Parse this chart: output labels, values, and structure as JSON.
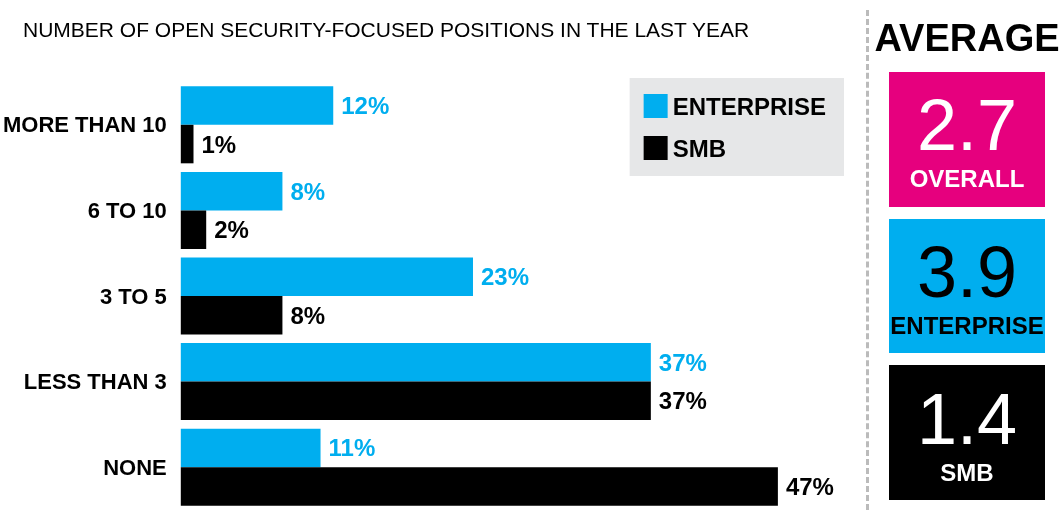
{
  "chart_data": [
    {
      "type": "bar",
      "orientation": "horizontal",
      "title": "NUMBER OF OPEN SECURITY-FOCUSED POSITIONS IN THE LAST YEAR",
      "categories": [
        "MORE THAN 10",
        "6 TO 10",
        "3 TO 5",
        "LESS THAN 3",
        "NONE"
      ],
      "series": [
        {
          "name": "ENTERPRISE",
          "color": "#00aeef",
          "values": [
            12,
            8,
            23,
            37,
            11
          ],
          "value_labels": [
            "12%",
            "8%",
            "23%",
            "37%",
            "11%"
          ]
        },
        {
          "name": "SMB",
          "color": "#000000",
          "values": [
            1,
            2,
            8,
            37,
            47
          ],
          "value_labels": [
            "1%",
            "2%",
            "8%",
            "37%",
            "47%"
          ]
        }
      ],
      "legend": "top right",
      "grid": false
    },
    {
      "type": "other",
      "title": "AVERAGE",
      "annotations": [
        "2.7",
        "OVERALL",
        "3.9",
        "ENTERPRISE",
        "1.4",
        "SMB"
      ]
    }
  ]
}
